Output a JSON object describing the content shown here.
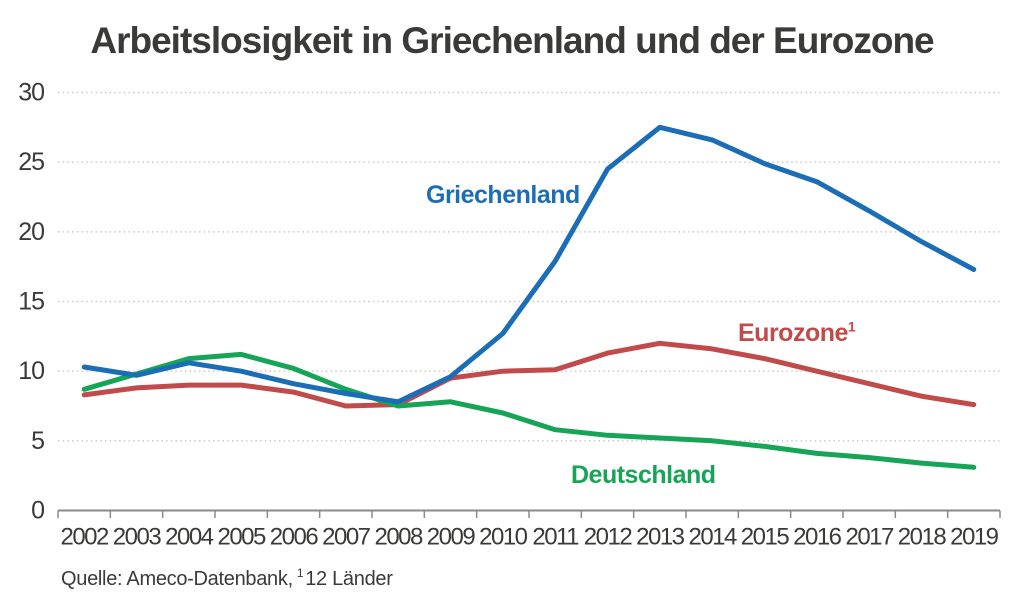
{
  "title": "Arbeitslosigkeit in Griechenland und der Eurozone",
  "source": {
    "label": "Quelle: Ameco-Datenbank,",
    "footnote_marker": "1",
    "footnote_text": "12 Länder"
  },
  "colors": {
    "greece": "#1b6eb5",
    "eurozone": "#c14b4b",
    "germany": "#16a457",
    "text": "#3a3a39",
    "grid": "#c9c9c9",
    "axis": "#8a8a8a"
  },
  "chart_data": {
    "type": "line",
    "title": "Arbeitslosigkeit in Griechenland und der Eurozone",
    "x": [
      2002,
      2003,
      2004,
      2005,
      2006,
      2007,
      2008,
      2009,
      2010,
      2011,
      2012,
      2013,
      2014,
      2015,
      2016,
      2017,
      2018,
      2019
    ],
    "ylim": [
      0,
      30
    ],
    "yticks": [
      0,
      5,
      10,
      15,
      20,
      25,
      30
    ],
    "grid": "horizontal-dotted",
    "legend": "inline-labels-near-lines",
    "xlabel": "",
    "ylabel": "",
    "series": [
      {
        "name": "Griechenland",
        "color": "#1b6eb5",
        "values": [
          10.3,
          9.7,
          10.6,
          10.0,
          9.1,
          8.4,
          7.8,
          9.6,
          12.7,
          17.9,
          24.5,
          27.5,
          26.6,
          24.9,
          23.6,
          21.5,
          19.3,
          17.3
        ]
      },
      {
        "name": "Eurozone",
        "sup": "1",
        "color": "#c14b4b",
        "values": [
          8.3,
          8.8,
          9.0,
          9.0,
          8.5,
          7.5,
          7.6,
          9.5,
          10.0,
          10.1,
          11.3,
          12.0,
          11.6,
          10.9,
          10.0,
          9.1,
          8.2,
          7.6
        ]
      },
      {
        "name": "Deutschland",
        "color": "#16a457",
        "values": [
          8.7,
          9.8,
          10.9,
          11.2,
          10.2,
          8.7,
          7.5,
          7.8,
          7.0,
          5.8,
          5.4,
          5.2,
          5.0,
          4.6,
          4.1,
          3.8,
          3.4,
          3.1
        ]
      }
    ]
  }
}
